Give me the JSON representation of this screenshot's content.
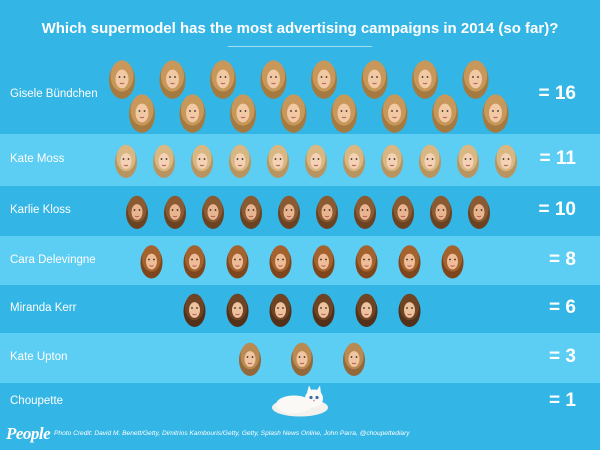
{
  "title": "Which supermodel has the most advertising campaigns in 2014 (so far)?",
  "colors": {
    "background": "#33b5e5",
    "band_light": "#5ccdf3",
    "text": "#ffffff"
  },
  "chart_data": {
    "type": "pictograph",
    "title": "Which supermodel has the most advertising campaigns in 2014 (so far)?",
    "categories": [
      "Gisele Bündchen",
      "Kate Moss",
      "Karlie Kloss",
      "Cara Delevingne",
      "Miranda Kerr",
      "Kate Upton",
      "Choupette"
    ],
    "values": [
      16,
      11,
      10,
      8,
      6,
      3,
      1
    ],
    "value_labels": [
      "= 16",
      "= 11",
      "= 10",
      "= 8",
      "= 6",
      "= 3",
      "= 1"
    ],
    "icon_types": [
      "face-blonde",
      "face-blonde-short",
      "face-brunette-short",
      "face-brunette-long",
      "face-brunette",
      "face-blonde-long",
      "cat"
    ],
    "alternating_bands": true
  },
  "footer": {
    "logo": "People",
    "credit": "Photo Credit: David M. Benett/Getty, Dimitrios Kambouris/Getty, Getty, Splash News Online, John Parra, @choupettediary"
  }
}
